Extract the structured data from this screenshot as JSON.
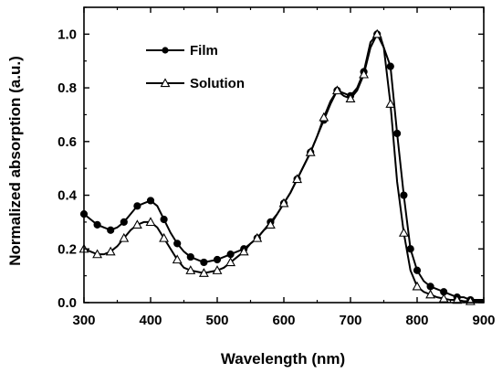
{
  "chart_data": {
    "type": "line",
    "xlabel": "Wavelength (nm)",
    "ylabel": "Normalized absorption (a.u.)",
    "xlim": [
      300,
      900
    ],
    "ylim": [
      0,
      1.1
    ],
    "xticks": [
      300,
      400,
      500,
      600,
      700,
      800,
      900
    ],
    "yticks": [
      0.0,
      0.2,
      0.4,
      0.6,
      0.8,
      1.0
    ],
    "ytick_labels": [
      "0.0",
      "0.2",
      "0.4",
      "0.6",
      "0.8",
      "1.0"
    ],
    "grid": false,
    "legend_position": "top-left",
    "series": [
      {
        "name": "Film",
        "marker": "filled-circle",
        "color": "#000000",
        "x": [
          300,
          310,
          320,
          330,
          340,
          350,
          360,
          370,
          380,
          390,
          400,
          410,
          420,
          430,
          440,
          450,
          460,
          470,
          480,
          490,
          500,
          510,
          520,
          530,
          540,
          550,
          560,
          570,
          580,
          590,
          600,
          610,
          620,
          630,
          640,
          650,
          660,
          670,
          680,
          690,
          700,
          710,
          720,
          730,
          740,
          745,
          750,
          760,
          770,
          780,
          790,
          800,
          810,
          820,
          830,
          840,
          850,
          860,
          870,
          880,
          890,
          900
        ],
        "y": [
          0.33,
          0.31,
          0.29,
          0.28,
          0.27,
          0.28,
          0.3,
          0.33,
          0.36,
          0.37,
          0.38,
          0.36,
          0.31,
          0.26,
          0.22,
          0.19,
          0.17,
          0.16,
          0.15,
          0.155,
          0.16,
          0.17,
          0.18,
          0.19,
          0.2,
          0.22,
          0.24,
          0.27,
          0.3,
          0.33,
          0.37,
          0.41,
          0.46,
          0.51,
          0.56,
          0.62,
          0.68,
          0.74,
          0.79,
          0.78,
          0.77,
          0.8,
          0.86,
          0.97,
          1.0,
          0.99,
          0.95,
          0.88,
          0.63,
          0.4,
          0.2,
          0.12,
          0.08,
          0.06,
          0.05,
          0.04,
          0.03,
          0.02,
          0.02,
          0.01,
          0.01,
          0.01
        ],
        "markers_x": [
          300,
          320,
          340,
          360,
          380,
          400,
          420,
          440,
          460,
          480,
          500,
          520,
          540,
          560,
          580,
          600,
          620,
          640,
          660,
          680,
          700,
          720,
          740,
          760,
          770,
          780,
          790,
          800,
          820,
          840,
          860,
          880
        ]
      },
      {
        "name": "Solution",
        "marker": "open-triangle",
        "color": "#000000",
        "x": [
          300,
          310,
          320,
          330,
          340,
          350,
          360,
          370,
          380,
          390,
          400,
          410,
          420,
          430,
          440,
          450,
          460,
          470,
          480,
          490,
          500,
          510,
          520,
          530,
          540,
          550,
          560,
          570,
          580,
          590,
          600,
          610,
          620,
          630,
          640,
          650,
          660,
          670,
          680,
          690,
          700,
          710,
          720,
          730,
          740,
          750,
          760,
          770,
          780,
          790,
          800,
          810,
          820,
          830,
          840,
          850,
          860,
          870,
          880,
          890,
          900
        ],
        "y": [
          0.2,
          0.19,
          0.18,
          0.18,
          0.19,
          0.21,
          0.24,
          0.27,
          0.29,
          0.3,
          0.3,
          0.28,
          0.24,
          0.2,
          0.16,
          0.13,
          0.12,
          0.115,
          0.11,
          0.115,
          0.12,
          0.13,
          0.15,
          0.17,
          0.19,
          0.22,
          0.24,
          0.27,
          0.29,
          0.33,
          0.37,
          0.41,
          0.46,
          0.51,
          0.56,
          0.62,
          0.69,
          0.75,
          0.79,
          0.77,
          0.76,
          0.79,
          0.85,
          0.95,
          1.0,
          0.95,
          0.74,
          0.45,
          0.26,
          0.12,
          0.06,
          0.04,
          0.03,
          0.02,
          0.015,
          0.01,
          0.01,
          0.005,
          0.005,
          0.005,
          0.005
        ],
        "markers_x": [
          300,
          320,
          340,
          360,
          380,
          400,
          420,
          440,
          460,
          480,
          500,
          520,
          540,
          560,
          580,
          600,
          620,
          640,
          660,
          680,
          700,
          720,
          740,
          760,
          780,
          800,
          820,
          840,
          860,
          880
        ]
      }
    ]
  }
}
